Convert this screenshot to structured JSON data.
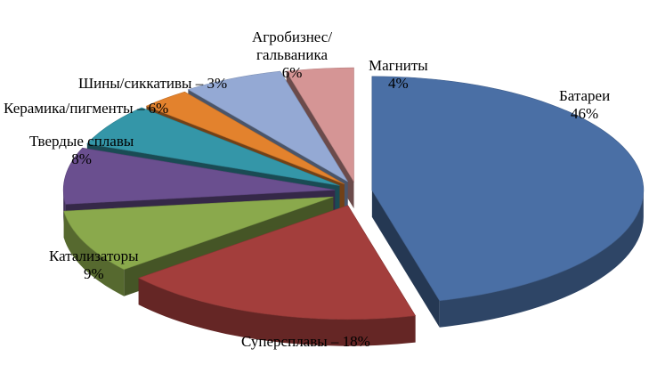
{
  "chart_data": {
    "type": "pie",
    "style": "3d-exploded",
    "title": "",
    "unit": "%",
    "slices": [
      {
        "label": "Батареи",
        "value": 46,
        "value_text": "46%",
        "color": "#4a6fa5"
      },
      {
        "label": "Суперсплавы",
        "value": 18,
        "value_text": "Суперсплавы – 18%",
        "color": "#a33e3c"
      },
      {
        "label": "Катализаторы",
        "value": 9,
        "value_text": "9%",
        "color": "#8aa94c"
      },
      {
        "label": "Твердые сплавы",
        "value": 8,
        "value_text": "8%",
        "color": "#6a4f8f"
      },
      {
        "label": "Керамика/пигменты",
        "value": 6,
        "value_text": "Керамика/пигменты – 6%",
        "color": "#3496a8"
      },
      {
        "label": "Шины/сиккативы",
        "value": 3,
        "value_text": "Шины/сиккативы – 3%",
        "color": "#e3822d"
      },
      {
        "label": "Агробизнес/гальваника",
        "value": 6,
        "value_text": "6%",
        "color": "#94a9d4"
      },
      {
        "label": "Магниты",
        "value": 4,
        "value_text": "4%",
        "color": "#d59595"
      }
    ]
  },
  "labels": {
    "batteries": {
      "name": "Батареи",
      "pct": "46%"
    },
    "superalloys": {
      "text": "Суперсплавы – 18%"
    },
    "catalysts": {
      "name": "Катализаторы",
      "pct": "9%"
    },
    "hardalloys": {
      "name": "Твердые сплавы",
      "pct": "8%"
    },
    "ceramics": {
      "text": "Керамика/пигменты – 6%"
    },
    "tires": {
      "text": "Шины/сиккативы – 3%"
    },
    "agro": {
      "line1": "Агробизнес/",
      "line2": "гальваника",
      "pct": "6%"
    },
    "magnets": {
      "name": "Магниты",
      "pct": "4%"
    }
  }
}
